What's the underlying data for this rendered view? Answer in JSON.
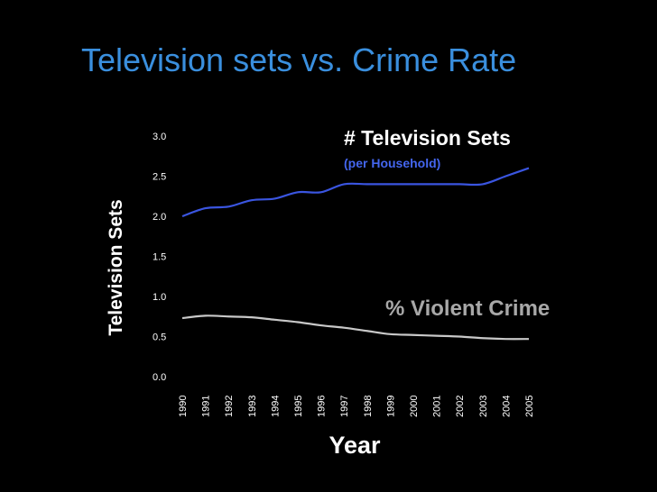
{
  "title": "Television sets vs. Crime Rate",
  "chart_data": {
    "type": "line",
    "title": "Television sets vs. Crime Rate",
    "xlabel": "Year",
    "ylabel": "Television Sets",
    "ylim": [
      0,
      3.0
    ],
    "yticks": [
      "0.0",
      "0.5",
      "1.0",
      "1.5",
      "2.0",
      "2.5",
      "3.0"
    ],
    "x": [
      "1990",
      "1991",
      "1992",
      "1993",
      "1994",
      "1995",
      "1996",
      "1997",
      "1998",
      "1999",
      "2000",
      "2001",
      "2002",
      "2003",
      "2004",
      "2005"
    ],
    "grid": false,
    "series": [
      {
        "name": "# Television Sets",
        "subtitle": "(per Household)",
        "color": "#3a55e0",
        "values": [
          2.0,
          2.1,
          2.12,
          2.2,
          2.22,
          2.3,
          2.3,
          2.4,
          2.4,
          2.4,
          2.4,
          2.4,
          2.4,
          2.4,
          2.5,
          2.6
        ]
      },
      {
        "name": "% Violent Crime",
        "color": "#c8c8c8",
        "values": [
          0.73,
          0.76,
          0.75,
          0.74,
          0.71,
          0.68,
          0.64,
          0.61,
          0.57,
          0.53,
          0.52,
          0.51,
          0.5,
          0.48,
          0.47,
          0.47
        ]
      }
    ]
  }
}
